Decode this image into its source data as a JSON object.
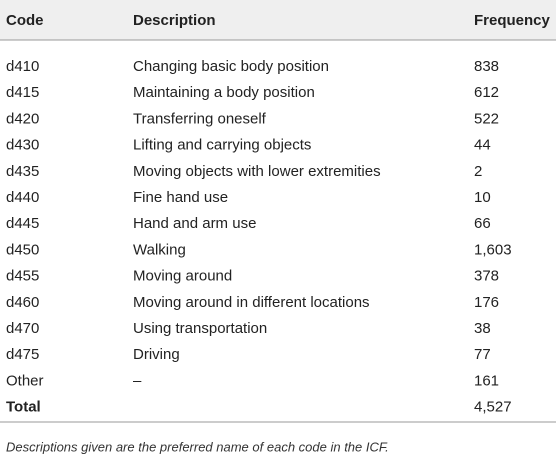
{
  "table": {
    "header": [
      "Code",
      "Description",
      "Frequency"
    ],
    "rows": [
      [
        "d410",
        "Changing basic body position",
        "838"
      ],
      [
        "d415",
        "Maintaining a body position",
        "612"
      ],
      [
        "d420",
        "Transferring oneself",
        "522"
      ],
      [
        "d430",
        "Lifting and carrying objects",
        "44"
      ],
      [
        "d435",
        "Moving objects with lower extremities",
        "2"
      ],
      [
        "d440",
        "Fine hand use",
        "10"
      ],
      [
        "d445",
        "Hand and arm use",
        "66"
      ],
      [
        "d450",
        "Walking",
        "1,603"
      ],
      [
        "d455",
        "Moving around",
        "378"
      ],
      [
        "d460",
        "Moving around in different locations",
        "176"
      ],
      [
        "d470",
        "Using transportation",
        "38"
      ],
      [
        "d475",
        "Driving",
        "77"
      ],
      [
        "Other",
        "–",
        "161"
      ]
    ],
    "total": [
      "Total",
      "4,527"
    ]
  },
  "footnote": "Descriptions given are the preferred name of each code in the ICF."
}
